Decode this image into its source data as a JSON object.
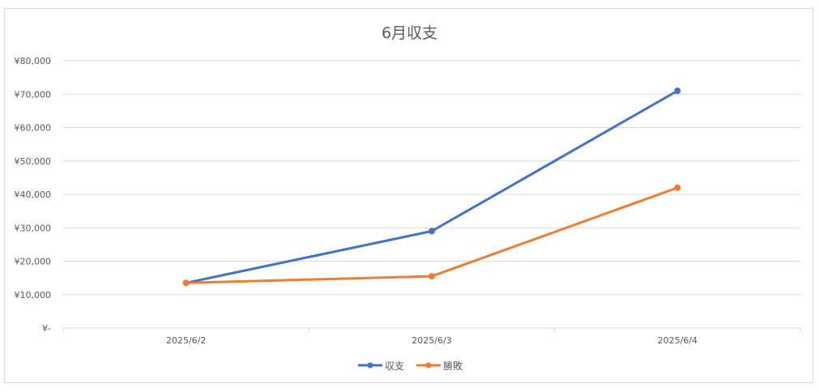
{
  "chart_data": {
    "type": "line",
    "title": "6月収支",
    "categories": [
      "2025/6/2",
      "2025/6/3",
      "2025/6/4"
    ],
    "ylim": [
      0,
      80000
    ],
    "y_ticks": [
      0,
      10000,
      20000,
      30000,
      40000,
      50000,
      60000,
      70000,
      80000
    ],
    "y_tick_labels": [
      "¥-",
      "¥10,000",
      "¥20,000",
      "¥30,000",
      "¥40,000",
      "¥50,000",
      "¥60,000",
      "¥70,000",
      "¥80,000"
    ],
    "grid": true,
    "legend_position": "bottom",
    "series": [
      {
        "name": "収支",
        "color": "#4472c4",
        "values": [
          13500,
          29000,
          71000
        ]
      },
      {
        "name": "勝敗",
        "color": "#ed7d31",
        "values": [
          13500,
          15500,
          42000
        ]
      }
    ]
  }
}
